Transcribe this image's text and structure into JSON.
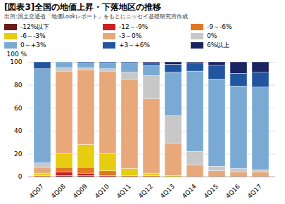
{
  "chart_data": {
    "type": "bar",
    "stacked": true,
    "title": "[図表3]全国の地価上昇・下落地区の推移",
    "subtitle": "出所:国土交通省「地価Lookレポート」をもとにニッセイ基礎研究所作成",
    "categories": [
      "4Q07",
      "4Q08",
      "4Q09",
      "4Q10",
      "4Q11",
      "4Q12",
      "4Q13",
      "4Q14",
      "4Q15",
      "4Q16",
      "4Q17"
    ],
    "series": [
      {
        "name": "-12%以下",
        "color": "#6b1a1a",
        "values": [
          0,
          1,
          1,
          0,
          0,
          0,
          0,
          0,
          0,
          0,
          0
        ]
      },
      {
        "name": "-12～-9%",
        "color": "#cc2020",
        "values": [
          0,
          3,
          2,
          1,
          0,
          0,
          0,
          0,
          0,
          0,
          0
        ]
      },
      {
        "name": "-9～-6%",
        "color": "#e07820",
        "values": [
          1,
          4,
          5,
          4,
          1,
          1,
          0,
          0,
          0,
          0,
          0
        ]
      },
      {
        "name": "-6～-3%",
        "color": "#e8cc10",
        "values": [
          2,
          12,
          20,
          15,
          6,
          2,
          1,
          0,
          0,
          0,
          0
        ]
      },
      {
        "name": "-3～0%",
        "color": "#e8a87a",
        "values": [
          5,
          72,
          65,
          72,
          78,
          65,
          28,
          10,
          5,
          4,
          4
        ]
      },
      {
        "name": "0%",
        "color": "#c8c8c8",
        "values": [
          4,
          3,
          2,
          2,
          6,
          20,
          24,
          12,
          4,
          3,
          2
        ]
      },
      {
        "name": "0～+3%",
        "color": "#7aaad4",
        "values": [
          82,
          5,
          4,
          5,
          8,
          9,
          38,
          70,
          76,
          72,
          72
        ]
      },
      {
        "name": "+3～+6%",
        "color": "#2255a0",
        "values": [
          6,
          0,
          1,
          1,
          1,
          2,
          7,
          7,
          12,
          11,
          13
        ]
      },
      {
        "name": "6%以上",
        "color": "#1a2460",
        "values": [
          0,
          0,
          0,
          0,
          0,
          1,
          2,
          1,
          3,
          10,
          9
        ]
      }
    ],
    "ylabel": "100 %",
    "ylim": [
      0,
      100
    ],
    "yticks": [
      0,
      20,
      40,
      60,
      80,
      100
    ],
    "grid": true,
    "legend": "top"
  }
}
